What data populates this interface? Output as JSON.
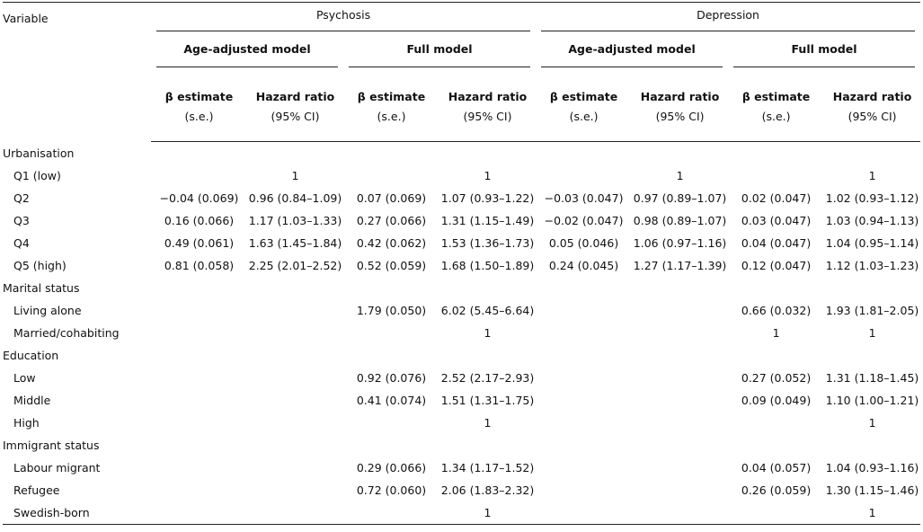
{
  "header": {
    "variable": "Variable",
    "groups": [
      {
        "title": "Psychosis",
        "models": [
          {
            "title": "Age-adjusted model",
            "columns": [
              [
                "β estimate",
                "(s.e.)"
              ],
              [
                "Hazard ratio",
                "(95% CI)"
              ]
            ]
          },
          {
            "title": "Full model",
            "columns": [
              [
                "β estimate",
                "(s.e.)"
              ],
              [
                "Hazard ratio",
                "(95% CI)"
              ]
            ]
          }
        ]
      },
      {
        "title": "Depression",
        "models": [
          {
            "title": "Age-adjusted model",
            "columns": [
              [
                "β estimate",
                "(s.e.)"
              ],
              [
                "Hazard ratio",
                "(95% CI)"
              ]
            ]
          },
          {
            "title": "Full model",
            "columns": [
              [
                "β estimate",
                "(s.e.)"
              ],
              [
                "Hazard ratio",
                "(95% CI)"
              ]
            ]
          }
        ]
      }
    ]
  },
  "sections": [
    {
      "title": "Urbanisation",
      "rows": [
        {
          "label": "Q1 (low)",
          "cells": [
            null,
            "1",
            null,
            "1",
            null,
            "1",
            null,
            "1"
          ]
        },
        {
          "label": "Q2",
          "cells": [
            "−0.04 (0.069)",
            "0.96 (0.84–1.09)",
            "0.07 (0.069)",
            "1.07 (0.93–1.22)",
            "−0.03 (0.047)",
            "0.97 (0.89–1.07)",
            "0.02 (0.047)",
            "1.02 (0.93–1.12)"
          ]
        },
        {
          "label": "Q3",
          "cells": [
            "0.16 (0.066)",
            "1.17 (1.03–1.33)",
            "0.27 (0.066)",
            "1.31 (1.15–1.49)",
            "−0.02 (0.047)",
            "0.98 (0.89–1.07)",
            "0.03 (0.047)",
            "1.03 (0.94–1.13)"
          ]
        },
        {
          "label": "Q4",
          "cells": [
            "0.49 (0.061)",
            "1.63 (1.45–1.84)",
            "0.42 (0.062)",
            "1.53 (1.36–1.73)",
            "0.05 (0.046)",
            "1.06 (0.97–1.16)",
            "0.04 (0.047)",
            "1.04 (0.95–1.14)"
          ]
        },
        {
          "label": "Q5 (high)",
          "cells": [
            "0.81 (0.058)",
            "2.25 (2.01–2.52)",
            "0.52 (0.059)",
            "1.68 (1.50–1.89)",
            "0.24 (0.045)",
            "1.27 (1.17–1.39)",
            "0.12 (0.047)",
            "1.12 (1.03–1.23)"
          ]
        }
      ]
    },
    {
      "title": "Marital status",
      "rows": [
        {
          "label": "Living alone",
          "cells": [
            null,
            null,
            "1.79 (0.050)",
            "6.02 (5.45–6.64)",
            null,
            null,
            "0.66 (0.032)",
            "1.93 (1.81–2.05)"
          ]
        },
        {
          "label": "Married/cohabiting",
          "cells": [
            null,
            null,
            null,
            "1",
            null,
            null,
            "1",
            "1"
          ]
        }
      ]
    },
    {
      "title": "Education",
      "rows": [
        {
          "label": "Low",
          "cells": [
            null,
            null,
            "0.92 (0.076)",
            "2.52 (2.17–2.93)",
            null,
            null,
            "0.27 (0.052)",
            "1.31 (1.18–1.45)"
          ]
        },
        {
          "label": "Middle",
          "cells": [
            null,
            null,
            "0.41 (0.074)",
            "1.51 (1.31–1.75)",
            null,
            null,
            "0.09 (0.049)",
            "1.10 (1.00–1.21)"
          ]
        },
        {
          "label": "High",
          "cells": [
            null,
            null,
            null,
            "1",
            null,
            null,
            null,
            "1"
          ]
        }
      ]
    },
    {
      "title": "Immigrant status",
      "rows": [
        {
          "label": "Labour migrant",
          "cells": [
            null,
            null,
            "0.29 (0.066)",
            "1.34 (1.17–1.52)",
            null,
            null,
            "0.04 (0.057)",
            "1.04 (0.93–1.16)"
          ]
        },
        {
          "label": "Refugee",
          "cells": [
            null,
            null,
            "0.72 (0.060)",
            "2.06 (1.83–2.32)",
            null,
            null,
            "0.26 (0.059)",
            "1.30 (1.15–1.46)"
          ]
        },
        {
          "label": "Swedish-born",
          "cells": [
            null,
            null,
            null,
            "1",
            null,
            null,
            null,
            "1"
          ]
        }
      ]
    }
  ]
}
